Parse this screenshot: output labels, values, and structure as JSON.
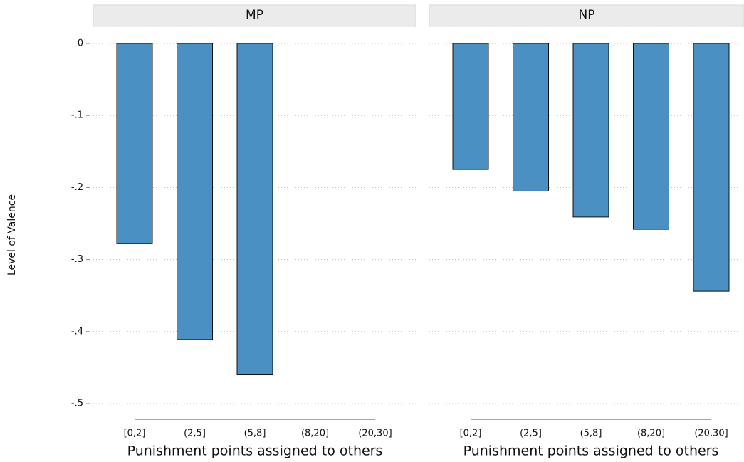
{
  "chart_data": [
    {
      "type": "bar",
      "title": "MP",
      "ylabel": "Level of Valence",
      "xlabel": "Punishment points assigned to others",
      "categories": [
        "[0,2]",
        "(2,5]",
        "(5,8]",
        "(8,20]",
        "(20,30]"
      ],
      "values": [
        -0.278,
        -0.411,
        -0.46,
        null,
        null
      ],
      "color": "#4a90c2",
      "ylim": [
        -0.5,
        0
      ],
      "yticks": [
        0,
        {
          "value": -0.1,
          "label": "-.1"
        },
        {
          "value": -0.2,
          "label": "-.2"
        },
        {
          "value": -0.3,
          "label": "-.3"
        },
        {
          "value": -0.4,
          "label": "-.4"
        },
        {
          "value": -0.5,
          "label": "-.5"
        }
      ],
      "grid": true
    },
    {
      "type": "bar",
      "title": "NP",
      "xlabel": "Punishment points assigned to others",
      "categories": [
        "[0,2]",
        "(2,5]",
        "(5,8]",
        "(8,20]",
        "(20,30]"
      ],
      "values": [
        -0.175,
        -0.205,
        -0.241,
        -0.258,
        -0.344
      ],
      "color": "#4a90c2",
      "grid": true
    }
  ]
}
